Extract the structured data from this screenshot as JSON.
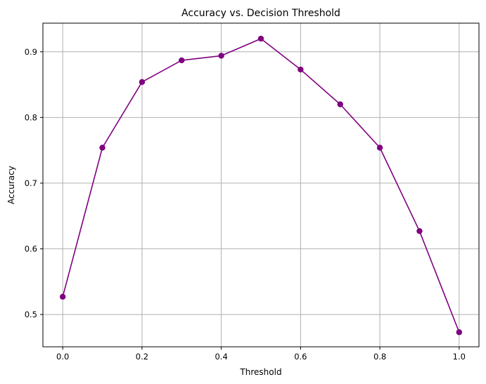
{
  "chart_data": {
    "type": "line",
    "title": "Accuracy vs. Decision Threshold",
    "xlabel": "Threshold",
    "ylabel": "Accuracy",
    "x": [
      0.0,
      0.1,
      0.2,
      0.3,
      0.4,
      0.5,
      0.6,
      0.7,
      0.8,
      0.9,
      1.0
    ],
    "series": [
      {
        "values": [
          0.527,
          0.754,
          0.854,
          0.887,
          0.894,
          0.92,
          0.873,
          0.82,
          0.754,
          0.627,
          0.473
        ],
        "color": "#800080",
        "marker": "circle"
      }
    ],
    "xticks": [
      {
        "value": 0.0,
        "label": "0.0"
      },
      {
        "value": 0.2,
        "label": "0.2"
      },
      {
        "value": 0.4,
        "label": "0.4"
      },
      {
        "value": 0.6,
        "label": "0.6"
      },
      {
        "value": 0.8,
        "label": "0.8"
      },
      {
        "value": 1.0,
        "label": "1.0"
      }
    ],
    "yticks": [
      {
        "value": 0.5,
        "label": "0.5"
      },
      {
        "value": 0.6,
        "label": "0.6"
      },
      {
        "value": 0.7,
        "label": "0.7"
      },
      {
        "value": 0.8,
        "label": "0.8"
      },
      {
        "value": 0.9,
        "label": "0.9"
      }
    ],
    "xlim": [
      -0.05,
      1.05
    ],
    "ylim": [
      0.4508,
      0.9436
    ],
    "grid": true
  }
}
